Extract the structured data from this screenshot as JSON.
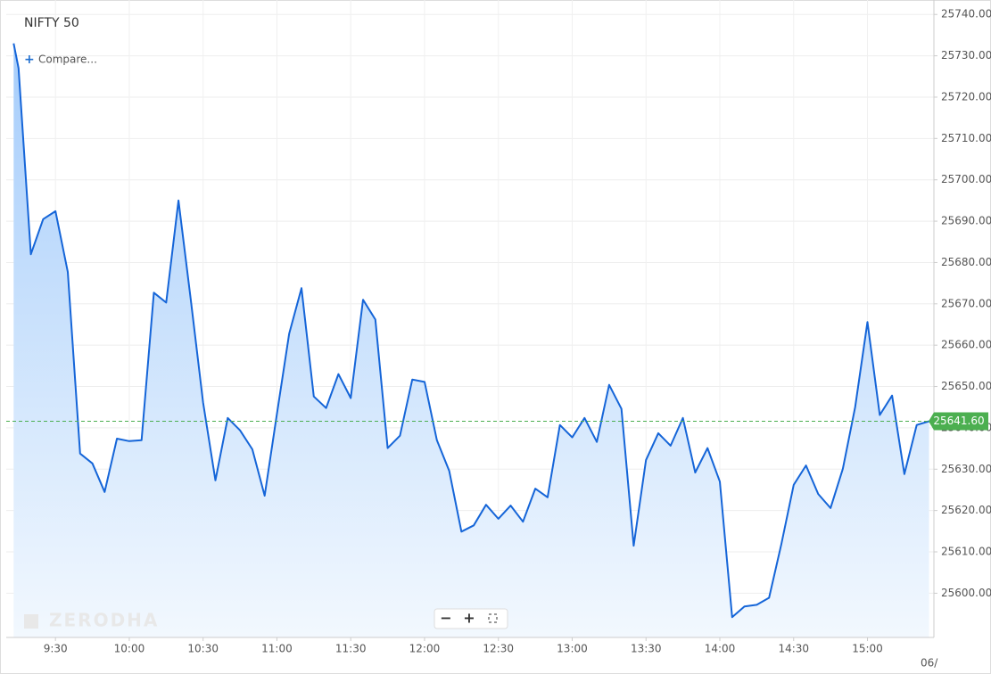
{
  "chart_data": {
    "type": "area",
    "title": "NIFTY 50",
    "compare_label": "Compare...",
    "watermark": "ZERODHA",
    "date_label": "06/",
    "color": "#1565d8",
    "x": [
      553,
      555,
      560,
      565,
      570,
      575,
      580,
      585,
      590,
      595,
      600,
      605,
      610,
      615,
      620,
      625,
      630,
      635,
      640,
      645,
      650,
      655,
      660,
      665,
      670,
      675,
      680,
      685,
      690,
      695,
      700,
      705,
      710,
      715,
      720,
      725,
      730,
      735,
      740,
      745,
      750,
      755,
      760,
      765,
      770,
      775,
      780,
      785,
      790,
      795,
      800,
      805,
      810,
      815,
      820,
      825,
      830,
      835,
      840,
      845,
      850,
      855,
      860,
      865,
      870,
      875,
      880,
      885,
      890,
      895,
      900,
      905,
      910,
      915,
      920,
      925
    ],
    "values": [
      25733,
      25727,
      25682,
      25690.5,
      25692.4,
      25677.7,
      25633.8,
      25631.4,
      25624.5,
      25637.4,
      25636.8,
      25637,
      25672.7,
      25670.3,
      25695,
      25671,
      25646.1,
      25627.3,
      25642.4,
      25639.4,
      25634.8,
      25623.6,
      25643.3,
      25662.8,
      25673.8,
      25647.6,
      25644.8,
      25653,
      25647.2,
      25671,
      25666.2,
      25635.1,
      25638.1,
      25651.7,
      25651.1,
      25637,
      25629.6,
      25614.9,
      25616.4,
      25621.4,
      25618,
      25621.2,
      25617.3,
      25625.3,
      25623.2,
      25640.7,
      25637.7,
      25642.4,
      25636.6,
      25650.4,
      25644.6,
      25611.5,
      25632.2,
      25638.7,
      25635.7,
      25642.4,
      25629.2,
      25635.1,
      25627,
      25594.2,
      25596.8,
      25597.2,
      25598.9,
      25611.9,
      25626.2,
      25630.9,
      25624,
      25620.6,
      25630.1,
      25645,
      25665.6,
      25643.1,
      25647.8,
      25628.8,
      25640.7,
      25641.6
    ],
    "last_price": {
      "value": 25641.6,
      "label": "25641.60"
    },
    "xlim": [
      550,
      927
    ],
    "xticks": [
      {
        "value": 570,
        "label": "9:30"
      },
      {
        "value": 600,
        "label": "10:00"
      },
      {
        "value": 630,
        "label": "10:30"
      },
      {
        "value": 660,
        "label": "11:00"
      },
      {
        "value": 690,
        "label": "11:30"
      },
      {
        "value": 720,
        "label": "12:00"
      },
      {
        "value": 750,
        "label": "12:30"
      },
      {
        "value": 780,
        "label": "13:00"
      },
      {
        "value": 810,
        "label": "13:30"
      },
      {
        "value": 840,
        "label": "14:00"
      },
      {
        "value": 870,
        "label": "14:30"
      },
      {
        "value": 900,
        "label": "15:00"
      }
    ],
    "ylim": [
      25589.3,
      25743.5
    ],
    "yticks": [
      {
        "value": 25600,
        "label": "25600.00"
      },
      {
        "value": 25610,
        "label": "25610.00"
      },
      {
        "value": 25620,
        "label": "25620.00"
      },
      {
        "value": 25630,
        "label": "25630.00"
      },
      {
        "value": 25640,
        "label": "25640.00"
      },
      {
        "value": 25650,
        "label": "25650.00"
      },
      {
        "value": 25660,
        "label": "25660.00"
      },
      {
        "value": 25670,
        "label": "25670.00"
      },
      {
        "value": 25680,
        "label": "25680.00"
      },
      {
        "value": 25690,
        "label": "25690.00"
      },
      {
        "value": 25700,
        "label": "25700.00"
      },
      {
        "value": 25710,
        "label": "25710.00"
      },
      {
        "value": 25720,
        "label": "25720.00"
      },
      {
        "value": 25730,
        "label": "25730.00"
      },
      {
        "value": 25740,
        "label": "25740.00"
      }
    ],
    "grid": true
  }
}
